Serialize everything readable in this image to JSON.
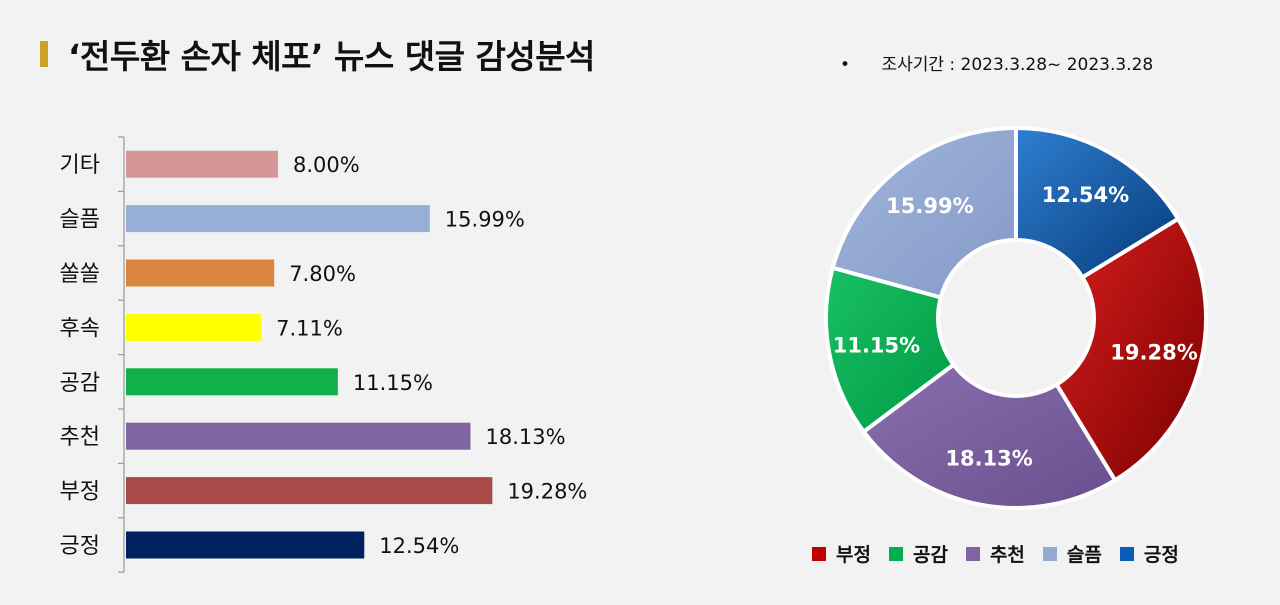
{
  "title": "‘전두환 손자 체포’ 뉴스 댓글 감성분석",
  "period": "조사기간 : 2023.3.28~ 2023.3.28",
  "chart_data": [
    {
      "type": "bar",
      "orientation": "horizontal",
      "categories": [
        "기타",
        "슬픔",
        "쏠쏠",
        "후속",
        "공감",
        "추천",
        "부정",
        "긍정"
      ],
      "values": [
        8.0,
        15.99,
        7.8,
        7.11,
        11.15,
        18.13,
        19.28,
        12.54
      ],
      "labels": [
        "8.00%",
        "15.99%",
        "7.80%",
        "7.11%",
        "11.15%",
        "18.13%",
        "19.28%",
        "12.54%"
      ],
      "colors": [
        "#d49696",
        "#97aed5",
        "#db843f",
        "#ffff00",
        "#10b04a",
        "#8064a2",
        "#aa4a48",
        "#002060"
      ],
      "xlim": [
        0,
        30
      ]
    },
    {
      "type": "pie",
      "donut": true,
      "categories": [
        "긍정",
        "부정",
        "추천",
        "공감",
        "슬픔"
      ],
      "values": [
        12.54,
        19.28,
        18.13,
        11.15,
        15.99
      ],
      "labels": [
        "12.54%",
        "19.28%",
        "18.13%",
        "11.15%",
        "15.99%"
      ],
      "colors": [
        "#0a5db4",
        "#c00000",
        "#8064a2",
        "#00b050",
        "#95aad3"
      ],
      "legend": {
        "position": "bottom",
        "order": [
          "부정",
          "공감",
          "추천",
          "슬픔",
          "긍정"
        ]
      }
    }
  ]
}
